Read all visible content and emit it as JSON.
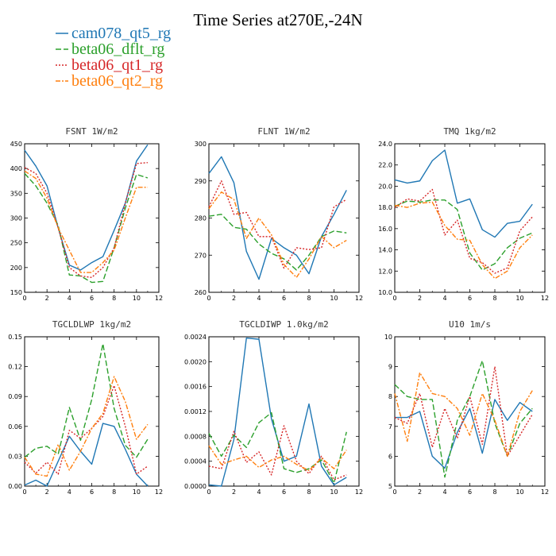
{
  "figure": {
    "title": "Time Series at270E,-24N"
  },
  "legend": [
    {
      "name": "cam078_qt5_rg",
      "color": "#1f77b4",
      "dash": "solid"
    },
    {
      "name": "beta06_dflt_rg",
      "color": "#2ca02c",
      "dash": "dashed"
    },
    {
      "name": "beta06_qt1_rg",
      "color": "#d62728",
      "dash": "dotted"
    },
    {
      "name": "beta06_qt2_rg",
      "color": "#ff7f0e",
      "dash": "dashdot"
    }
  ],
  "chart_data": [
    {
      "type": "line",
      "title": "FSNT   1W/m2",
      "x": [
        0,
        1,
        2,
        3,
        4,
        5,
        6,
        7,
        8,
        9,
        10,
        11
      ],
      "xlim": [
        0,
        12
      ],
      "xticks": [
        "0",
        "2",
        "4",
        "6",
        "8",
        "10",
        "12"
      ],
      "ylim": [
        150,
        450
      ],
      "yticks": [
        "150",
        "200",
        "250",
        "300",
        "350",
        "400",
        "450"
      ],
      "series": [
        {
          "name": "cam078_qt5_rg",
          "values": [
            437,
            405,
            365,
            280,
            205,
            195,
            210,
            222,
            275,
            330,
            415,
            448
          ]
        },
        {
          "name": "beta06_dflt_rg",
          "values": [
            390,
            365,
            330,
            285,
            185,
            183,
            170,
            172,
            240,
            320,
            388,
            381
          ]
        },
        {
          "name": "beta06_qt1_rg",
          "values": [
            402,
            390,
            350,
            280,
            200,
            183,
            180,
            200,
            240,
            330,
            410,
            412
          ]
        },
        {
          "name": "beta06_qt2_rg",
          "values": [
            395,
            380,
            340,
            280,
            235,
            190,
            190,
            210,
            235,
            300,
            362,
            362
          ]
        }
      ]
    },
    {
      "type": "line",
      "title": "FLNT   1W/m2",
      "x": [
        0,
        1,
        2,
        3,
        4,
        5,
        6,
        7,
        8,
        9,
        10,
        11
      ],
      "xlim": [
        0,
        12
      ],
      "xticks": [
        "0",
        "2",
        "4",
        "6",
        "8",
        "10",
        "12"
      ],
      "ylim": [
        260,
        300
      ],
      "yticks": [
        "260",
        "270",
        "280",
        "290",
        "300"
      ],
      "series": [
        {
          "name": "cam078_qt5_rg",
          "values": [
            292,
            296.5,
            289.5,
            271,
            263.5,
            274.5,
            272,
            270,
            265,
            275,
            281,
            287.5
          ]
        },
        {
          "name": "beta06_dflt_rg",
          "values": [
            280.5,
            281,
            277.5,
            277,
            273,
            270.5,
            269,
            266,
            270,
            275,
            276.5,
            276
          ]
        },
        {
          "name": "beta06_qt1_rg",
          "values": [
            283,
            290,
            281,
            281.5,
            275,
            275,
            266.5,
            272,
            271.5,
            272,
            283,
            285
          ]
        },
        {
          "name": "beta06_qt2_rg",
          "values": [
            282.5,
            287,
            285,
            274.5,
            280,
            275.5,
            267.5,
            264,
            269,
            275,
            272,
            274
          ]
        }
      ]
    },
    {
      "type": "line",
      "title": "TMQ   1kg/m2",
      "x": [
        0,
        1,
        2,
        3,
        4,
        5,
        6,
        7,
        8,
        9,
        10,
        11
      ],
      "xlim": [
        0,
        12
      ],
      "xticks": [
        "0",
        "2",
        "4",
        "6",
        "8",
        "10",
        "12"
      ],
      "ylim": [
        10,
        24
      ],
      "yticks": [
        "10.0",
        "12.0",
        "14.0",
        "16.0",
        "18.0",
        "20.0",
        "22.0",
        "24.0"
      ],
      "series": [
        {
          "name": "cam078_qt5_rg",
          "values": [
            20.6,
            20.3,
            20.5,
            22.4,
            23.4,
            18.4,
            18.8,
            15.9,
            15.2,
            16.5,
            16.7,
            18.3
          ]
        },
        {
          "name": "beta06_dflt_rg",
          "values": [
            18.1,
            18.6,
            18.5,
            18.7,
            18.7,
            17.8,
            13.7,
            12.1,
            12.7,
            14.2,
            15.1,
            15.6
          ]
        },
        {
          "name": "beta06_qt1_rg",
          "values": [
            18.0,
            18.8,
            18.6,
            19.7,
            15.4,
            16.8,
            13.2,
            12.8,
            11.8,
            12.3,
            15.8,
            17.1
          ]
        },
        {
          "name": "beta06_qt2_rg",
          "values": [
            18.2,
            18.0,
            18.4,
            18.5,
            16.3,
            15.0,
            14.9,
            12.6,
            11.3,
            12.0,
            14.2,
            15.4
          ]
        }
      ]
    },
    {
      "type": "line",
      "title": "TGCLDLWP   1kg/m2",
      "x": [
        0,
        1,
        2,
        3,
        4,
        5,
        6,
        7,
        8,
        9,
        10,
        11
      ],
      "xlim": [
        0,
        12
      ],
      "xticks": [
        "0",
        "2",
        "4",
        "6",
        "8",
        "10",
        "12"
      ],
      "ylim": [
        0,
        0.15
      ],
      "yticks": [
        "0.00",
        "0.03",
        "0.06",
        "0.09",
        "0.12",
        "0.15"
      ],
      "series": [
        {
          "name": "cam078_qt5_rg",
          "values": [
            0.001,
            0.006,
            0.0,
            0.025,
            0.05,
            0.035,
            0.022,
            0.063,
            0.06,
            0.037,
            0.012,
            0.0
          ]
        },
        {
          "name": "beta06_dflt_rg",
          "values": [
            0.029,
            0.038,
            0.04,
            0.032,
            0.079,
            0.046,
            0.087,
            0.143,
            0.078,
            0.041,
            0.029,
            0.047
          ]
        },
        {
          "name": "beta06_qt1_rg",
          "values": [
            0.024,
            0.013,
            0.024,
            0.012,
            0.056,
            0.048,
            0.058,
            0.07,
            0.101,
            0.06,
            0.012,
            0.02
          ]
        },
        {
          "name": "beta06_qt2_rg",
          "values": [
            0.029,
            0.012,
            0.01,
            0.042,
            0.016,
            0.035,
            0.058,
            0.073,
            0.11,
            0.085,
            0.047,
            0.062
          ]
        }
      ]
    },
    {
      "type": "line",
      "title": "TGCLDIWP   1.0kg/m2",
      "x": [
        0,
        1,
        2,
        3,
        4,
        5,
        6,
        7,
        8,
        9,
        10,
        11
      ],
      "xlim": [
        0,
        12
      ],
      "xticks": [
        "0",
        "2",
        "4",
        "6",
        "8",
        "10",
        "12"
      ],
      "ylim": [
        0,
        0.0024
      ],
      "yticks": [
        "0.0000",
        "0.0004",
        "0.0008",
        "0.0012",
        "0.0016",
        "0.0020",
        "0.0024"
      ],
      "series": [
        {
          "name": "cam078_qt5_rg",
          "values": [
            2e-05,
            0.0,
            0.00075,
            0.00238,
            0.00236,
            0.00108,
            0.0004,
            0.00048,
            0.00132,
            0.00032,
            2e-05,
            0.00014
          ]
        },
        {
          "name": "beta06_dflt_rg",
          "values": [
            0.00085,
            0.00048,
            0.00082,
            0.00062,
            0.00102,
            0.00118,
            0.00028,
            0.00022,
            0.00028,
            0.00042,
            5e-05,
            0.00087
          ]
        },
        {
          "name": "beta06_qt1_rg",
          "values": [
            0.00032,
            0.00028,
            0.00088,
            0.00038,
            0.00055,
            0.00018,
            0.00097,
            0.0004,
            0.0002,
            0.00048,
            0.0001,
            0.00018
          ]
        },
        {
          "name": "beta06_qt2_rg",
          "values": [
            0.00065,
            0.00035,
            0.00042,
            0.00048,
            0.0003,
            0.00042,
            0.00048,
            0.00035,
            0.00025,
            0.00045,
            0.00028,
            0.00058
          ]
        }
      ]
    },
    {
      "type": "line",
      "title": "U10   1m/s",
      "x": [
        0,
        1,
        2,
        3,
        4,
        5,
        6,
        7,
        8,
        9,
        10,
        11
      ],
      "xlim": [
        0,
        12
      ],
      "xticks": [
        "0",
        "2",
        "4",
        "6",
        "8",
        "10",
        "12"
      ],
      "ylim": [
        5,
        10
      ],
      "yticks": [
        "5",
        "6",
        "7",
        "8",
        "9",
        "10"
      ],
      "series": [
        {
          "name": "cam078_qt5_rg",
          "values": [
            7.3,
            7.3,
            7.5,
            6.0,
            5.6,
            6.8,
            7.6,
            6.1,
            7.9,
            7.2,
            7.8,
            7.5
          ]
        },
        {
          "name": "beta06_dflt_rg",
          "values": [
            8.4,
            8.0,
            7.9,
            7.9,
            5.3,
            7.2,
            8.0,
            9.2,
            7.1,
            6.0,
            7.1,
            7.6
          ]
        },
        {
          "name": "beta06_qt1_rg",
          "values": [
            7.3,
            7.1,
            8.1,
            6.3,
            7.6,
            6.6,
            8.0,
            6.4,
            9.0,
            6.0,
            6.7,
            7.4
          ]
        },
        {
          "name": "beta06_qt2_rg",
          "values": [
            8.1,
            6.5,
            8.8,
            8.1,
            8.0,
            7.6,
            6.7,
            8.1,
            7.2,
            6.0,
            7.5,
            8.2
          ]
        }
      ]
    }
  ]
}
